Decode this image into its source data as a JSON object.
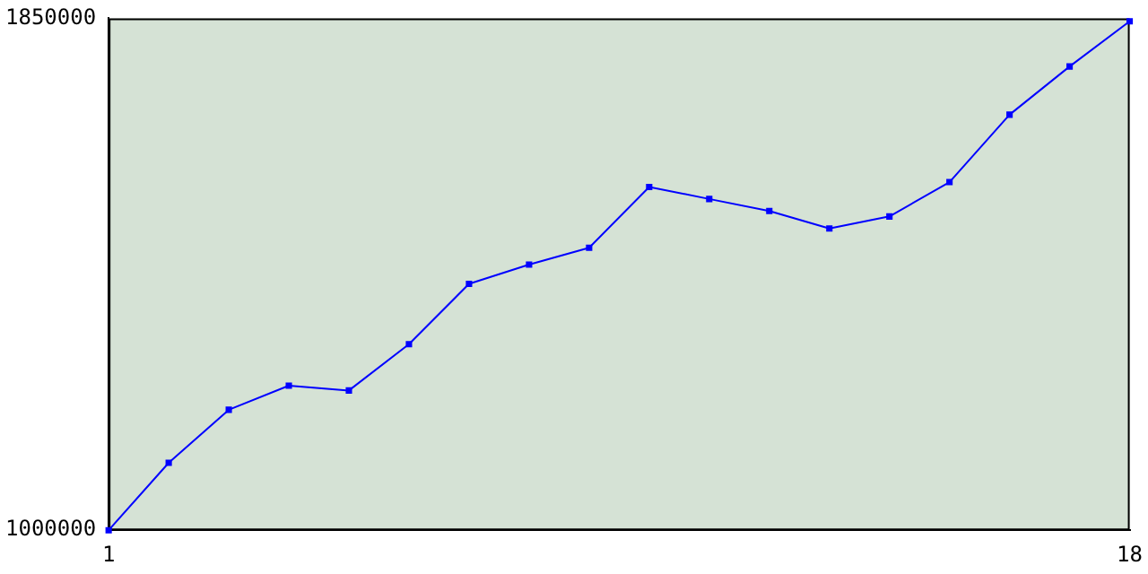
{
  "chart_data": {
    "type": "line",
    "x": [
      1,
      2,
      3,
      4,
      5,
      6,
      7,
      8,
      9,
      10,
      11,
      12,
      13,
      14,
      15,
      16,
      17,
      18
    ],
    "series": [
      {
        "color": "#0000ff",
        "values": [
          1000000,
          1112000,
          1200000,
          1240000,
          1232000,
          1309000,
          1409000,
          1441000,
          1469000,
          1570000,
          1550000,
          1530000,
          1501000,
          1521000,
          1578000,
          1690000,
          1770000,
          1845000
        ]
      }
    ],
    "xlim": [
      1,
      18
    ],
    "xticks": [
      1,
      18
    ],
    "ylim": [
      1000000,
      1850000
    ],
    "yticks": [
      1000000,
      1850000
    ],
    "grid": false,
    "legend": false,
    "marker": "square",
    "line_style": "solid"
  }
}
